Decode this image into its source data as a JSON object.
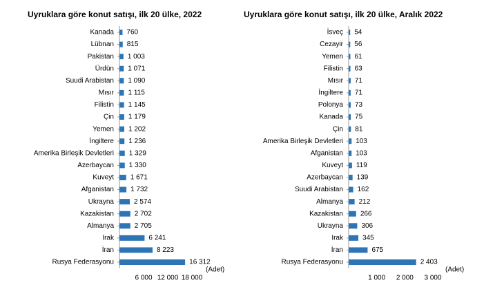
{
  "chart_data": [
    {
      "type": "bar",
      "orientation": "horizontal",
      "title": "Uyruklara göre konut satışı, ilk 20 ülke, 2022",
      "categories": [
        "Kanada",
        "Lübnan",
        "Pakistan",
        "Ürdün",
        "Suudi Arabistan",
        "Mısır",
        "Filistin",
        "Çin",
        "Yemen",
        "İngiltere",
        "Amerika Birleşik Devletleri",
        "Azerbaycan",
        "Kuveyt",
        "Afganistan",
        "Ukrayna",
        "Kazakistan",
        "Almanya",
        "Irak",
        "İran",
        "Rusya Federasyonu"
      ],
      "values": [
        760,
        815,
        1003,
        1071,
        1090,
        1115,
        1145,
        1179,
        1202,
        1236,
        1329,
        1330,
        1671,
        1732,
        2574,
        2702,
        2705,
        6241,
        8223,
        16312
      ],
      "value_labels": [
        "760",
        "815",
        "1 003",
        "1 071",
        "1 090",
        "1 115",
        "1 145",
        "1 179",
        "1 202",
        "1 236",
        "1 329",
        "1 330",
        "1 671",
        "1 732",
        "2 574",
        "2 702",
        "2 705",
        "6 241",
        "8 223",
        "16 312"
      ],
      "color": "#2e75b6",
      "xlim": [
        0,
        18000
      ],
      "xticks": [
        {
          "value": 6000,
          "label": "6 000"
        },
        {
          "value": 12000,
          "label": "12 000"
        },
        {
          "value": 18000,
          "label": "18 000"
        }
      ],
      "unit_label": "(Adet)"
    },
    {
      "type": "bar",
      "orientation": "horizontal",
      "title": "Uyruklara göre konut satışı, ilk 20 ülke, Aralık 2022",
      "categories": [
        "İsveç",
        "Cezayir",
        "Yemen",
        "Filistin",
        "Mısır",
        "İngiltere",
        "Polonya",
        "Kanada",
        "Çin",
        "Amerika Birleşik Devletleri",
        "Afganistan",
        "Kuveyt",
        "Azerbaycan",
        "Suudi Arabistan",
        "Almanya",
        "Kazakistan",
        "Ukrayna",
        "Irak",
        "İran",
        "Rusya Federasyonu"
      ],
      "values": [
        54,
        56,
        61,
        63,
        71,
        71,
        73,
        75,
        81,
        103,
        103,
        119,
        139,
        162,
        212,
        266,
        306,
        345,
        675,
        2403
      ],
      "value_labels": [
        "54",
        "56",
        "61",
        "63",
        "71",
        "71",
        "73",
        "75",
        "81",
        "103",
        "103",
        "119",
        "139",
        "162",
        "212",
        "266",
        "306",
        "345",
        "675",
        "2 403"
      ],
      "color": "#2e75b6",
      "xlim": [
        0,
        3000
      ],
      "xticks": [
        {
          "value": 1000,
          "label": "1 000"
        },
        {
          "value": 2000,
          "label": "2 000"
        },
        {
          "value": 3000,
          "label": "3 000"
        }
      ],
      "unit_label": "(Adet)"
    }
  ]
}
